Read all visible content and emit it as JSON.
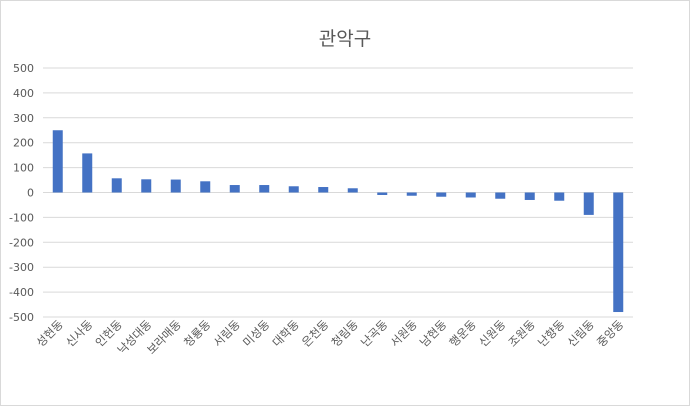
{
  "chart_data": {
    "type": "bar",
    "title": "관악구",
    "xlabel": "",
    "ylabel": "",
    "ylim": [
      -500,
      500
    ],
    "yticks": [
      500,
      400,
      300,
      200,
      100,
      0,
      -100,
      -200,
      -300,
      -400,
      -500
    ],
    "grid": true,
    "legend": "none",
    "bar_color": "#4472c4",
    "categories": [
      "성현동",
      "신사동",
      "인헌동",
      "낙성대동",
      "보라매동",
      "청룡동",
      "서림동",
      "미성동",
      "대학동",
      "은천동",
      "청림동",
      "난곡동",
      "서원동",
      "남현동",
      "행운동",
      "신원동",
      "조원동",
      "난향동",
      "신림동",
      "중앙동"
    ],
    "values": [
      250,
      157,
      57,
      53,
      52,
      45,
      30,
      30,
      25,
      22,
      17,
      -10,
      -13,
      -17,
      -20,
      -25,
      -30,
      -33,
      -90,
      -480
    ]
  }
}
